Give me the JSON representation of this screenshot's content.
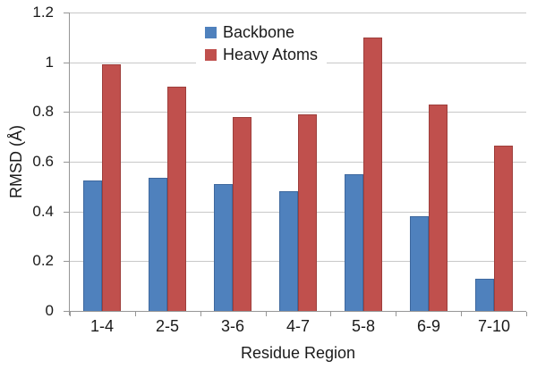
{
  "chart_data": {
    "type": "bar",
    "title": "",
    "categories": [
      "1-4",
      "2-5",
      "3-6",
      "4-7",
      "5-8",
      "6-9",
      "7-10"
    ],
    "series": [
      {
        "name": "Backbone",
        "color": "#4f81bd",
        "border_color": "#3e689e",
        "values": [
          0.525,
          0.535,
          0.51,
          0.48,
          0.55,
          0.38,
          0.13
        ]
      },
      {
        "name": "Heavy Atoms",
        "color": "#c0504d",
        "border_color": "#9e3e3b",
        "values": [
          0.99,
          0.9,
          0.78,
          0.79,
          1.1,
          0.83,
          0.665
        ]
      }
    ],
    "xlabel": "Residue Region",
    "ylabel": "RMSD (Å)",
    "ylim": [
      0,
      1.2
    ],
    "ytick_step": 0.2,
    "ytick_labels": [
      "0",
      "0.2",
      "0.4",
      "0.6",
      "0.8",
      "1",
      "1.2"
    ],
    "grid": true,
    "legend_position": "top-center",
    "colors": {
      "gridline": "#c8c8c8",
      "axis_line": "#969696",
      "text": "#1a1a1a",
      "background": "#ffffff"
    }
  }
}
